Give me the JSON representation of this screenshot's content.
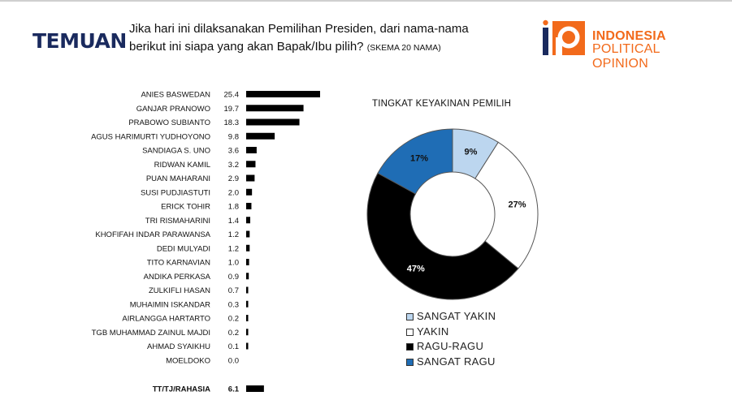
{
  "header": {
    "heading": "TEMUAN",
    "question_line1": "Jika hari ini dilaksanakan Pemilihan Presiden, dari nama-nama",
    "question_line2": "berikut ini siapa yang akan Bapak/Ibu pilih?",
    "question_note": "(SKEMA 20 NAMA)"
  },
  "logo": {
    "mark_text": "ip",
    "line1": "INDONESIA",
    "line2": "POLITICAL OPINION",
    "colors": {
      "orange": "#f26a1b",
      "navy": "#1a2a5e"
    }
  },
  "chart_data": [
    {
      "type": "bar",
      "orientation": "horizontal",
      "title": "",
      "xlabel": "",
      "ylabel": "",
      "categories": [
        "ANIES BASWEDAN",
        "GANJAR PRANOWO",
        "PRABOWO SUBIANTO",
        "AGUS HARIMURTI YUDHOYONO",
        "SANDIAGA S. UNO",
        "RIDWAN KAMIL",
        "PUAN MAHARANI",
        "SUSI PUDJIASTUTI",
        "ERICK TOHIR",
        "TRI RISMAHARINI",
        "KHOFIFAH INDAR PARAWANSA",
        "DEDI MULYADI",
        "TITO KARNAVIAN",
        "ANDIKA PERKASA",
        "ZULKIFLI HASAN",
        "MUHAIMIN ISKANDAR",
        "AIRLANGGA HARTARTO",
        "TGB MUHAMMAD ZAINUL MAJDI",
        "AHMAD SYAIKHU",
        "MOELDOKO"
      ],
      "values": [
        25.4,
        19.7,
        18.3,
        9.8,
        3.6,
        3.2,
        2.9,
        2.0,
        1.8,
        1.4,
        1.2,
        1.2,
        1.0,
        0.9,
        0.7,
        0.3,
        0.2,
        0.2,
        0.1,
        0.0
      ],
      "value_labels": [
        "25.4",
        "19.7",
        "18.3",
        "9.8",
        "3.6",
        "3.2",
        "2.9",
        "2.0",
        "1.8",
        "1.4",
        "1.2",
        "1.2",
        "1.0",
        "0.9",
        "0.7",
        "0.3",
        "0.2",
        "0.2",
        "0.1",
        "0.0"
      ],
      "extra": {
        "category": "TT/TJ/RAHASIA",
        "value": 6.1,
        "value_label": "6.1"
      },
      "xlim": [
        0,
        26
      ],
      "bar_color": "#000000"
    },
    {
      "type": "pie",
      "variant": "donut",
      "title": "TINGKAT KEYAKINAN PEMILIH",
      "categories": [
        "SANGAT YAKIN",
        "YAKIN",
        "RAGU-RAGU",
        "SANGAT RAGU"
      ],
      "values": [
        9,
        27,
        47,
        17
      ],
      "value_labels": [
        "9%",
        "27%",
        "47%",
        "17%"
      ],
      "colors": [
        "#bcd6ef",
        "#ffffff",
        "#000000",
        "#1f6db5"
      ],
      "label_colors": [
        "#111111",
        "#111111",
        "#ffffff",
        "#111111"
      ],
      "legend_position": "bottom"
    }
  ]
}
